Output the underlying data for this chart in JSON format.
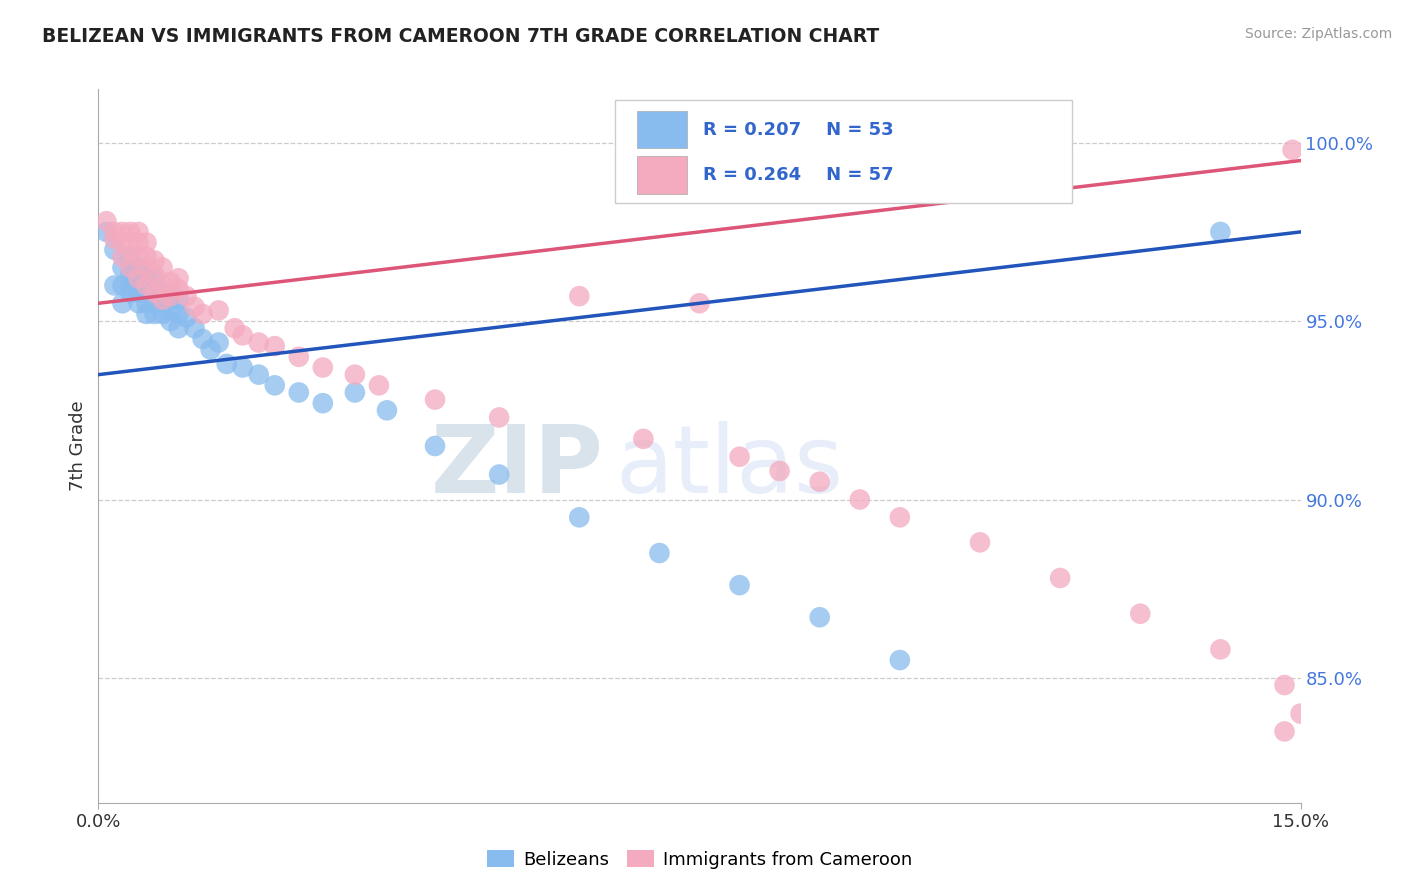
{
  "title": "BELIZEAN VS IMMIGRANTS FROM CAMEROON 7TH GRADE CORRELATION CHART",
  "source": "Source: ZipAtlas.com",
  "ylabel": "7th Grade",
  "ytick_labels": [
    "100.0%",
    "95.0%",
    "90.0%",
    "85.0%"
  ],
  "ytick_values": [
    1.0,
    0.95,
    0.9,
    0.85
  ],
  "xlim": [
    0.0,
    0.15
  ],
  "ylim": [
    0.815,
    1.015
  ],
  "legend_r1": "R = 0.207",
  "legend_n1": "N = 53",
  "legend_r2": "R = 0.264",
  "legend_n2": "N = 57",
  "blue_color": "#88BBEE",
  "pink_color": "#F4AABF",
  "blue_line_color": "#2255BB",
  "pink_line_color": "#DD5577",
  "watermark_zip": "ZIP",
  "watermark_atlas": "atlas",
  "blue_x": [
    0.001,
    0.002,
    0.002,
    0.003,
    0.003,
    0.003,
    0.004,
    0.004,
    0.004,
    0.004,
    0.005,
    0.005,
    0.005,
    0.005,
    0.006,
    0.006,
    0.006,
    0.006,
    0.006,
    0.007,
    0.007,
    0.007,
    0.007,
    0.008,
    0.008,
    0.008,
    0.009,
    0.009,
    0.009,
    0.01,
    0.01,
    0.01,
    0.011,
    0.012,
    0.013,
    0.014,
    0.015,
    0.016,
    0.018,
    0.02,
    0.022,
    0.025,
    0.028,
    0.032,
    0.036,
    0.042,
    0.05,
    0.06,
    0.07,
    0.08,
    0.09,
    0.1,
    0.14
  ],
  "blue_y": [
    0.975,
    0.97,
    0.96,
    0.965,
    0.96,
    0.955,
    0.968,
    0.963,
    0.958,
    0.96,
    0.965,
    0.958,
    0.962,
    0.955,
    0.96,
    0.958,
    0.963,
    0.955,
    0.952,
    0.958,
    0.962,
    0.955,
    0.952,
    0.958,
    0.955,
    0.952,
    0.957,
    0.953,
    0.95,
    0.956,
    0.952,
    0.948,
    0.951,
    0.948,
    0.945,
    0.942,
    0.944,
    0.938,
    0.937,
    0.935,
    0.932,
    0.93,
    0.927,
    0.93,
    0.925,
    0.915,
    0.907,
    0.895,
    0.885,
    0.876,
    0.867,
    0.855,
    0.975
  ],
  "pink_x": [
    0.001,
    0.002,
    0.002,
    0.003,
    0.003,
    0.003,
    0.004,
    0.004,
    0.004,
    0.005,
    0.005,
    0.005,
    0.005,
    0.006,
    0.006,
    0.006,
    0.006,
    0.007,
    0.007,
    0.007,
    0.008,
    0.008,
    0.008,
    0.009,
    0.009,
    0.01,
    0.01,
    0.011,
    0.012,
    0.013,
    0.015,
    0.017,
    0.018,
    0.02,
    0.022,
    0.025,
    0.028,
    0.032,
    0.035,
    0.042,
    0.05,
    0.06,
    0.068,
    0.075,
    0.08,
    0.085,
    0.09,
    0.095,
    0.1,
    0.11,
    0.12,
    0.13,
    0.14,
    0.148,
    0.15,
    0.149,
    0.148
  ],
  "pink_y": [
    0.978,
    0.975,
    0.973,
    0.972,
    0.968,
    0.975,
    0.97,
    0.965,
    0.975,
    0.972,
    0.968,
    0.975,
    0.962,
    0.968,
    0.972,
    0.965,
    0.96,
    0.967,
    0.963,
    0.958,
    0.965,
    0.96,
    0.956,
    0.961,
    0.957,
    0.959,
    0.962,
    0.957,
    0.954,
    0.952,
    0.953,
    0.948,
    0.946,
    0.944,
    0.943,
    0.94,
    0.937,
    0.935,
    0.932,
    0.928,
    0.923,
    0.957,
    0.917,
    0.955,
    0.912,
    0.908,
    0.905,
    0.9,
    0.895,
    0.888,
    0.878,
    0.868,
    0.858,
    0.848,
    0.84,
    0.998,
    0.835
  ],
  "blue_line_x0": 0.0,
  "blue_line_y0": 0.935,
  "blue_line_x1": 0.15,
  "blue_line_y1": 0.975,
  "pink_line_x0": 0.0,
  "pink_line_y0": 0.955,
  "pink_line_x1": 0.15,
  "pink_line_y1": 0.995
}
